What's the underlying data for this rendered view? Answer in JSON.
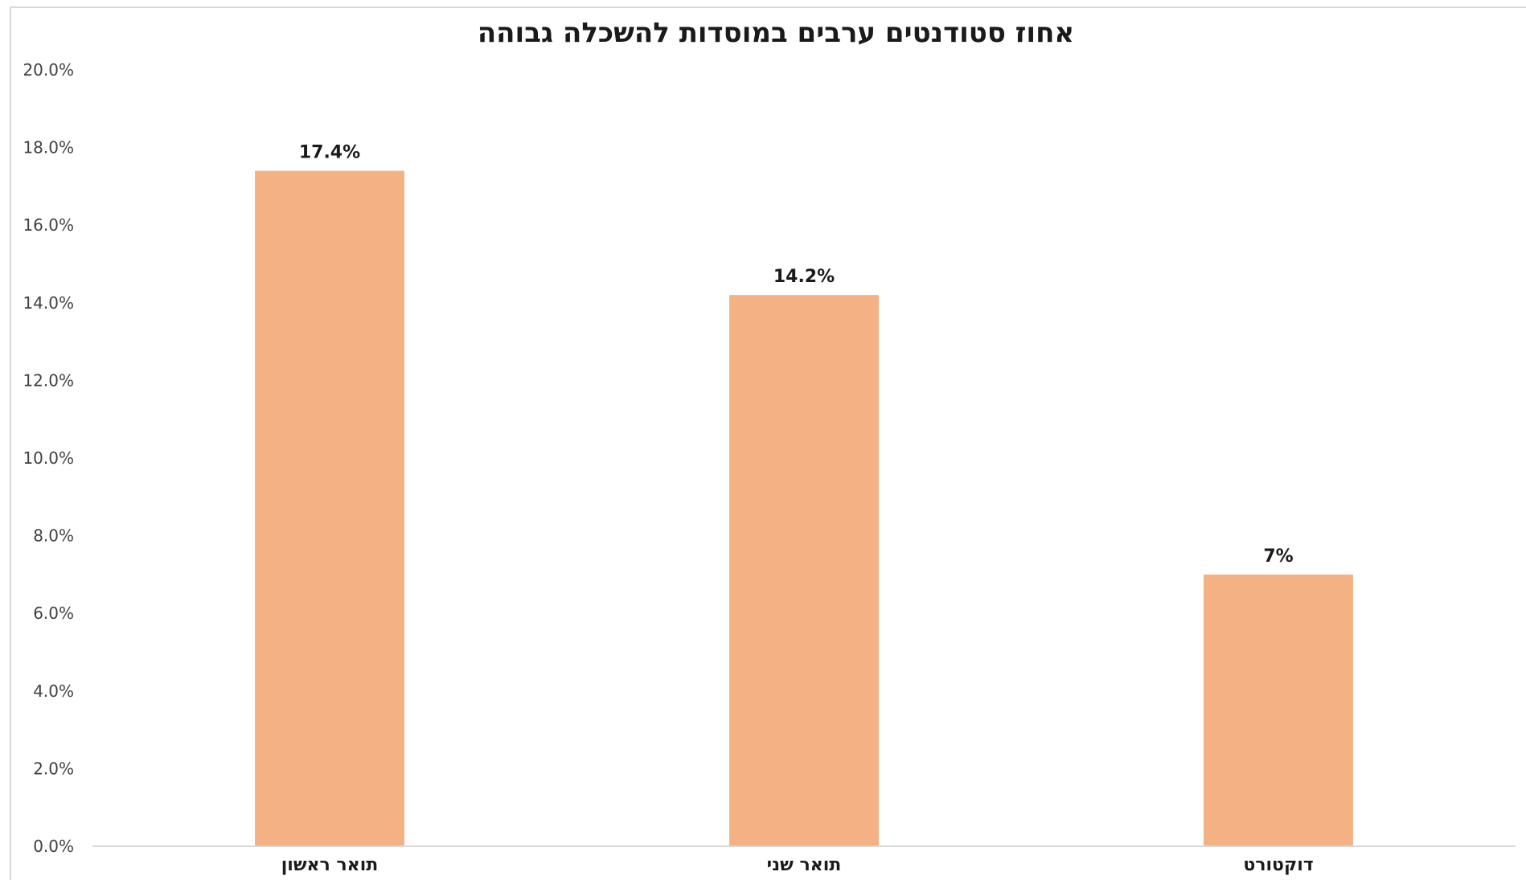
{
  "chart_data": {
    "type": "bar",
    "title": "אחוז סטודנטים ערבים במוסדות להשכלה גבוהה",
    "categories": [
      "תואר ראשון",
      "תואר שני",
      "דוקטורט"
    ],
    "values": [
      17.4,
      14.2,
      7.0
    ],
    "data_labels": [
      "17.4%",
      "14.2%",
      "7%"
    ],
    "ylim": [
      0,
      20
    ],
    "yticks": [
      0,
      2,
      4,
      6,
      8,
      10,
      12,
      14,
      16,
      18,
      20
    ],
    "ytick_labels": [
      "0.0%",
      "2.0%",
      "4.0%",
      "6.0%",
      "8.0%",
      "10.0%",
      "12.0%",
      "14.0%",
      "16.0%",
      "18.0%",
      "20.0%"
    ],
    "bar_color": "#f4b183",
    "axis_color": "#d9d9d9",
    "grid": false,
    "legend": "none"
  }
}
